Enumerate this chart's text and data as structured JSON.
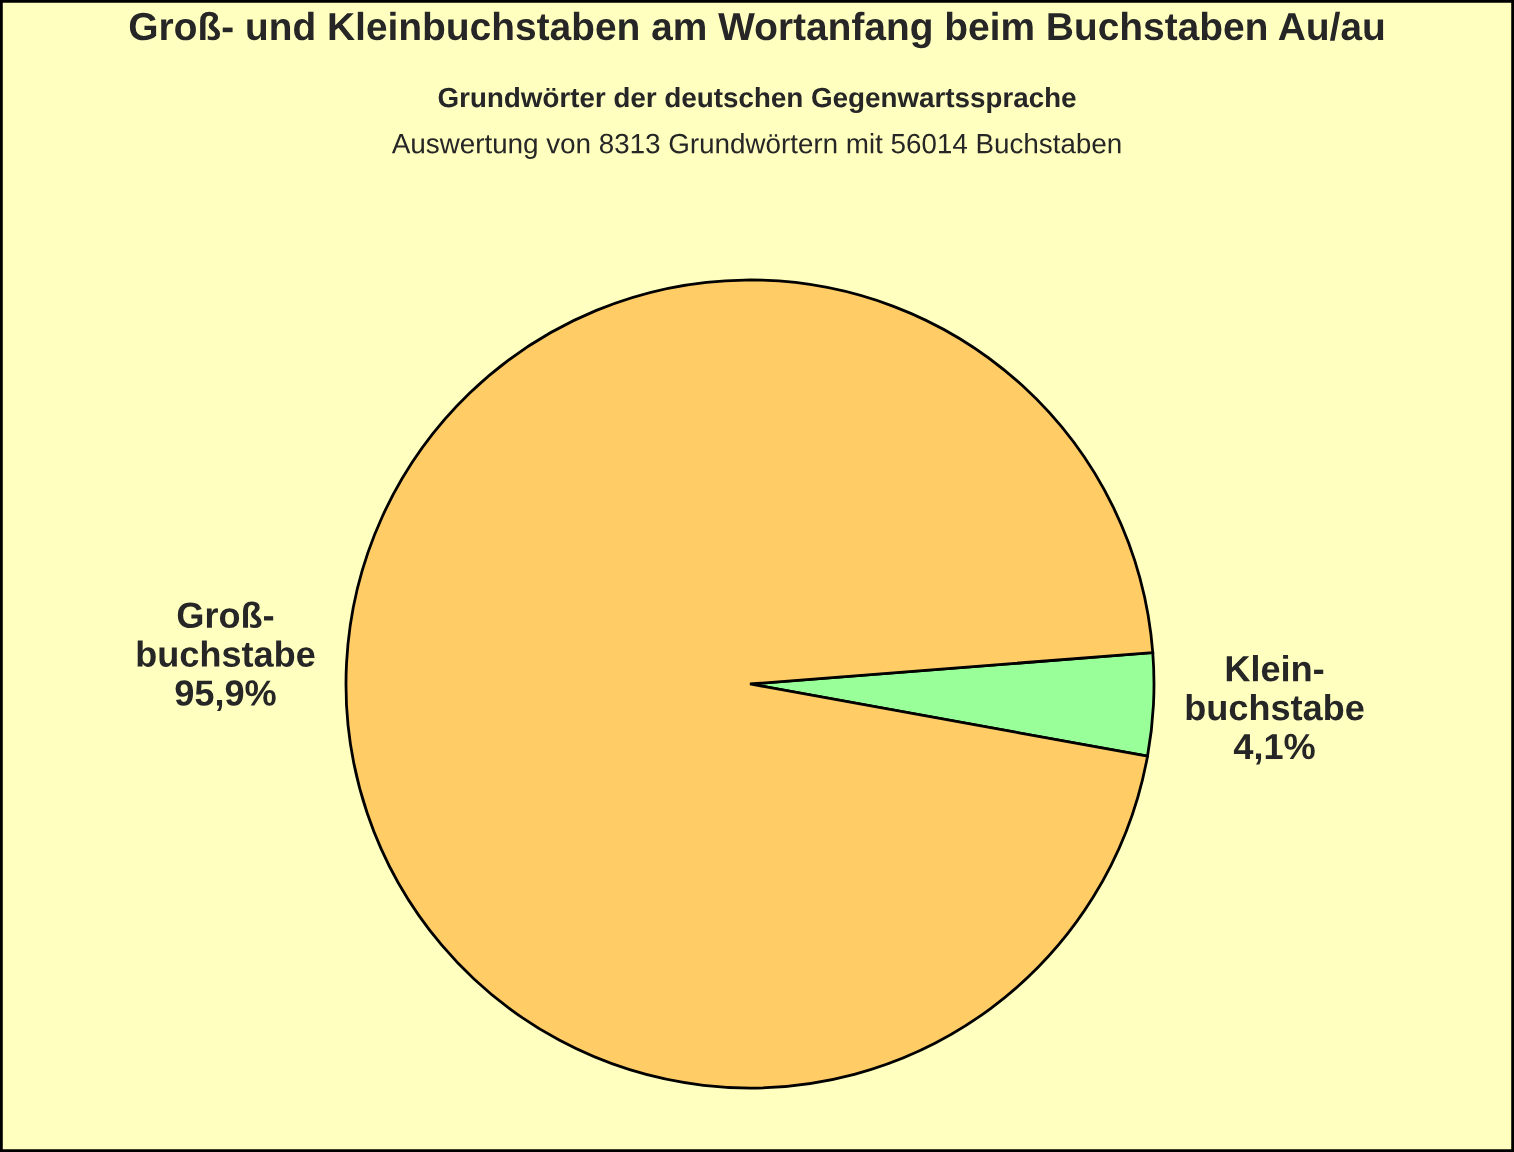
{
  "chart_data": {
    "type": "pie",
    "title": "Groß- und Kleinbuchstaben am Wortanfang beim Buchstaben Au/au",
    "subtitle": "Grundwörter der deutschen Gegenwartssprache",
    "annotations": [
      "Auswertung von 8313 Grundwörtern mit 56014 Buchstaben"
    ],
    "categories": [
      "Klein-\nbuchstabe",
      "Groß-\nbuchstabe"
    ],
    "values": [
      4.1,
      95.9
    ],
    "value_labels": [
      "4,1%",
      "95,9%"
    ],
    "colors": [
      "#99ff99",
      "#ffcc66"
    ],
    "legend": false
  }
}
